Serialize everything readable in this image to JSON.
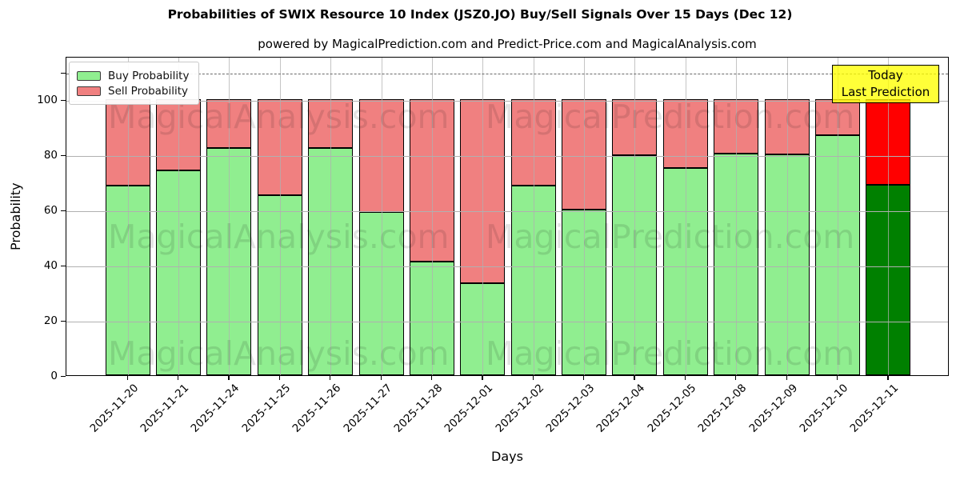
{
  "header": {
    "title": "Probabilities of SWIX Resource 10 Index (JSZ0.JO) Buy/Sell Signals Over 15 Days (Dec 12)",
    "subtitle": "powered by MagicalPrediction.com and Predict-Price.com and MagicalAnalysis.com"
  },
  "legend": {
    "items": [
      {
        "label": "Buy Probability",
        "color": "#90EE90"
      },
      {
        "label": "Sell Probability",
        "color": "#F08080"
      }
    ]
  },
  "annotation": {
    "lines": [
      "Today",
      "Last Prediction"
    ],
    "bg": "#FFFF00"
  },
  "watermark": {
    "left": "MagicalAnalysis.com",
    "right": "MagicalPrediction.com"
  },
  "axes": {
    "xlabel": "Days",
    "ylabel": "Probability",
    "yticks": [
      0,
      20,
      40,
      60,
      80,
      100
    ],
    "unlabeled_tick": 110
  },
  "colors": {
    "buy": "#90EE90",
    "sell": "#F08080",
    "buy_today": "#008000",
    "sell_today": "#FF0000",
    "grid": "#b0b0b0",
    "dashed": "#505050",
    "bar_edge": "#000000"
  },
  "chart_data": {
    "type": "bar",
    "stacked": true,
    "title": "Probabilities of SWIX Resource 10 Index (JSZ0.JO) Buy/Sell Signals Over 15 Days (Dec 12)",
    "xlabel": "Days",
    "ylabel": "Probability",
    "ylim": [
      0,
      115.7
    ],
    "dashed_line_y": 110,
    "grid": true,
    "legend_position": "upper left",
    "categories": [
      "2025-11-20",
      "2025-11-21",
      "2025-11-24",
      "2025-11-25",
      "2025-11-26",
      "2025-11-27",
      "2025-11-28",
      "2025-12-01",
      "2025-12-02",
      "2025-12-03",
      "2025-12-04",
      "2025-12-05",
      "2025-12-08",
      "2025-12-09",
      "2025-12-10",
      "2025-12-11"
    ],
    "series": [
      {
        "name": "Buy Probability",
        "color": "#90EE90",
        "values": [
          68.8,
          74.3,
          82.3,
          65.2,
          82.3,
          59.2,
          41.2,
          33.3,
          68.8,
          59.9,
          79.7,
          75.1,
          80.3,
          80.0,
          87.0,
          69.0
        ]
      },
      {
        "name": "Sell Probability",
        "color": "#F08080",
        "values": [
          31.2,
          25.7,
          17.7,
          34.8,
          17.7,
          40.8,
          58.8,
          66.7,
          31.2,
          40.1,
          20.3,
          24.9,
          19.7,
          20.0,
          13.0,
          31.0
        ]
      }
    ],
    "today_bar": {
      "category": "2025-12-11",
      "buy_color": "#008000",
      "sell_color": "#FF0000"
    }
  }
}
